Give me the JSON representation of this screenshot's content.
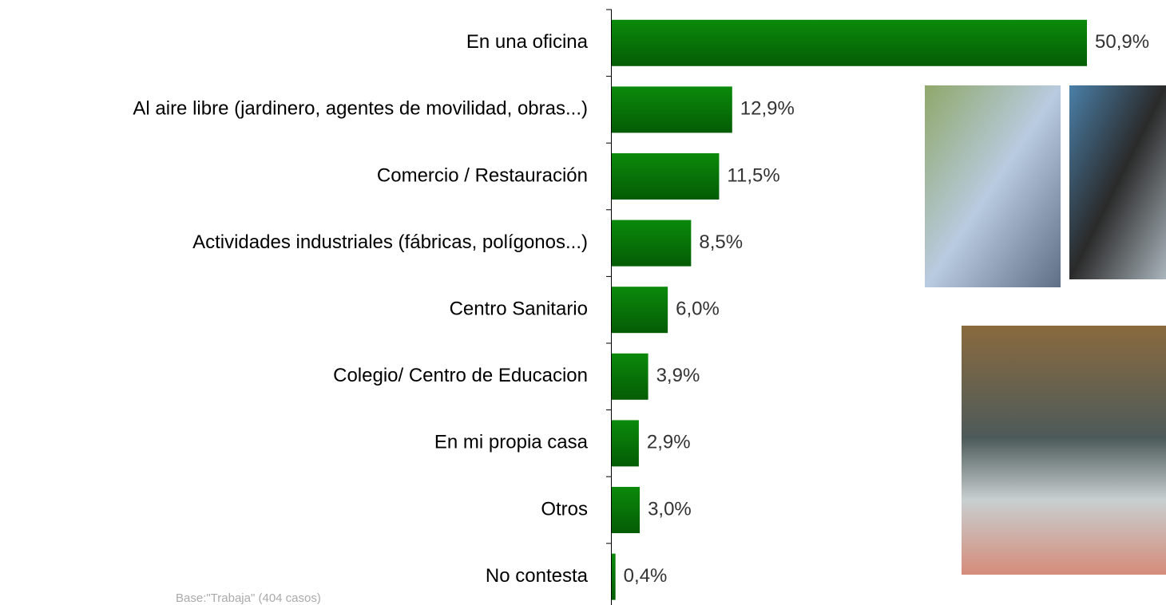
{
  "chart_data": {
    "type": "hbar",
    "categories": [
      "En una oficina",
      "Al aire libre (jardinero, agentes de movilidad, obras...)",
      "Comercio / Restauración",
      "Actividades industriales (fábricas, polígonos...)",
      "Centro Sanitario",
      "Colegio/ Centro de Educacion",
      "En mi propia casa",
      "Otros",
      "No contesta"
    ],
    "values": [
      50.9,
      12.9,
      11.5,
      8.5,
      6.0,
      3.9,
      2.9,
      3.0,
      0.4
    ],
    "value_labels": [
      "50,9%",
      "12,9%",
      "11,5%",
      "8,5%",
      "6,0%",
      "3,9%",
      "2,9%",
      "3,0%",
      "0,4%"
    ],
    "color": "#0a7a0a",
    "footnote": "Base:\"Trabaja\" (404 casos)"
  }
}
